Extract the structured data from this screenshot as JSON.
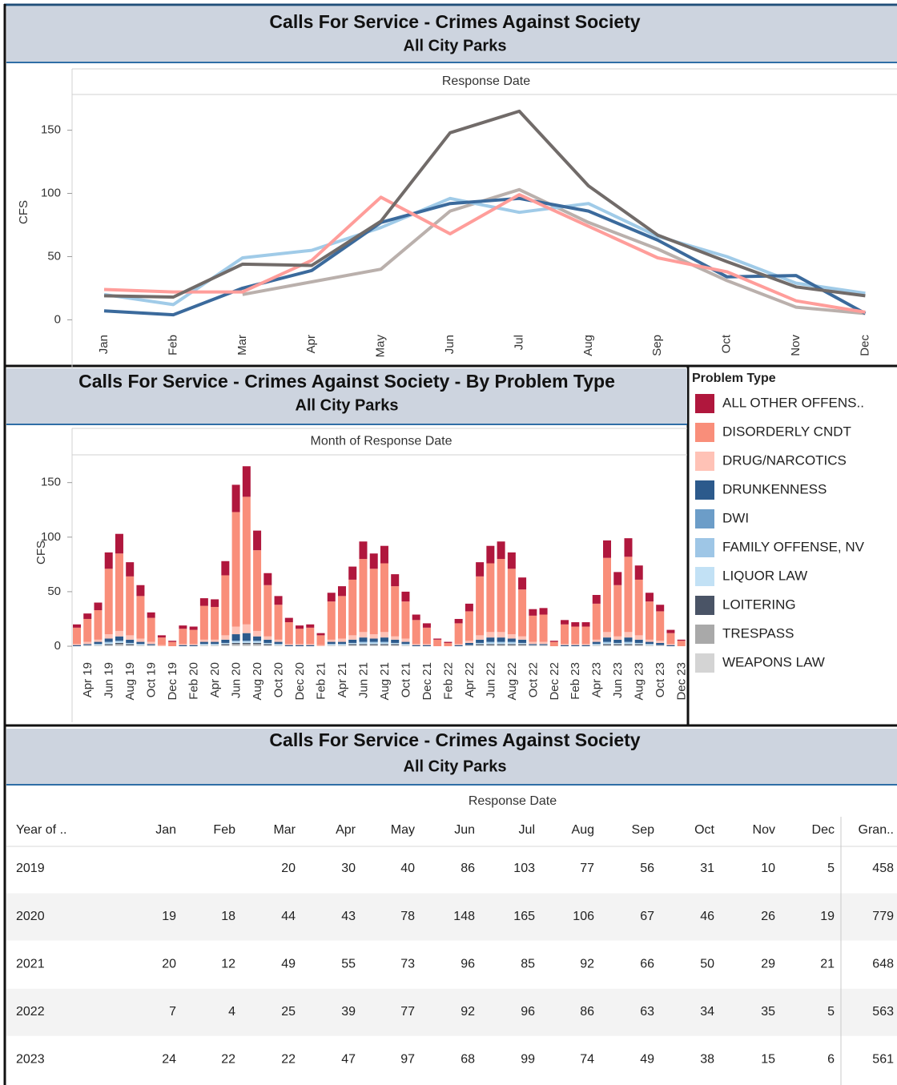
{
  "chart_data": [
    {
      "type": "line",
      "title": "Calls For Service - Crimes Against Society",
      "subtitle": "All City Parks",
      "header": "Response Date",
      "y_label": "CFS",
      "categories": [
        "Jan",
        "Feb",
        "Mar",
        "Apr",
        "May",
        "Jun",
        "Jul",
        "Aug",
        "Sep",
        "Oct",
        "Nov",
        "Dec"
      ],
      "series": [
        {
          "color": "#bab0ac",
          "values": [
            null,
            null,
            20,
            30,
            40,
            86,
            103,
            77,
            56,
            31,
            10,
            5
          ]
        },
        {
          "color": "#a0cbe8",
          "values": [
            20,
            12,
            49,
            55,
            73,
            96,
            85,
            92,
            66,
            50,
            29,
            21
          ]
        },
        {
          "color": "#3b6a9c",
          "values": [
            7,
            4,
            25,
            39,
            77,
            92,
            96,
            86,
            63,
            34,
            35,
            5
          ]
        },
        {
          "color": "#ff9d9a",
          "values": [
            24,
            22,
            22,
            47,
            97,
            68,
            99,
            74,
            49,
            38,
            15,
            6
          ]
        },
        {
          "color": "#716b69",
          "values": [
            19,
            18,
            44,
            43,
            78,
            148,
            165,
            106,
            67,
            46,
            26,
            19
          ]
        }
      ],
      "ylim": [
        -8,
        177
      ],
      "yticks": [
        0,
        50,
        100,
        150
      ]
    },
    {
      "type": "bar",
      "stacked": true,
      "title": "Calls For Service - Crimes Against Society - By Problem Type",
      "subtitle": "All City Parks",
      "header": "Month of Response Date",
      "y_label": "CFS",
      "legend_title": "Problem Type",
      "categories": [
        null,
        "Apr 19",
        null,
        "Jun 19",
        null,
        "Aug 19",
        null,
        "Oct 19",
        null,
        "Dec 19",
        null,
        "Feb 20",
        null,
        "Apr 20",
        null,
        "Jun 20",
        null,
        "Aug 20",
        null,
        "Oct 20",
        null,
        "Dec 20",
        null,
        "Feb 21",
        null,
        "Apr 21",
        null,
        "Jun 21",
        null,
        "Aug 21",
        null,
        "Oct 21",
        null,
        "Dec 21",
        null,
        "Feb 22",
        null,
        "Apr 22",
        null,
        "Jun 22",
        null,
        "Aug 22",
        null,
        "Oct 22",
        null,
        "Dec 22",
        null,
        "Feb 23",
        null,
        "Apr 23",
        null,
        "Jun 23",
        null,
        "Aug 23",
        null,
        "Oct 23",
        null,
        "Dec 23"
      ],
      "series": [
        {
          "name": "ALL OTHER OFFENS..",
          "color": "#b0173d",
          "values": [
            3,
            5,
            7,
            15,
            18,
            13,
            10,
            5,
            2,
            1,
            3,
            3,
            7,
            7,
            13,
            25,
            28,
            18,
            11,
            8,
            4,
            3,
            3,
            2,
            8,
            9,
            12,
            16,
            14,
            16,
            11,
            9,
            5,
            4,
            1,
            1,
            4,
            7,
            13,
            16,
            16,
            15,
            11,
            6,
            6,
            1,
            4,
            4,
            4,
            8,
            16,
            12,
            17,
            13,
            8,
            6,
            3,
            1
          ]
        },
        {
          "name": "DISORDERLY CNDT",
          "color": "#f98e7a",
          "values": [
            15,
            21,
            27,
            60,
            71,
            54,
            39,
            22,
            7,
            4,
            14,
            13,
            31,
            30,
            55,
            105,
            117,
            74,
            47,
            32,
            20,
            14,
            15,
            9,
            35,
            39,
            51,
            67,
            60,
            63,
            46,
            34,
            22,
            15,
            6,
            3,
            19,
            27,
            54,
            63,
            67,
            60,
            43,
            24,
            25,
            4,
            18,
            16,
            16,
            33,
            68,
            47,
            69,
            51,
            35,
            27,
            10,
            5
          ]
        },
        {
          "name": "DRUG/NARCOTICS",
          "color": "#ffc2b6",
          "values": [
            1,
            2,
            2,
            4,
            5,
            4,
            3,
            2,
            1,
            0,
            1,
            1,
            2,
            2,
            4,
            7,
            8,
            5,
            3,
            2,
            1,
            1,
            1,
            1,
            2,
            3,
            4,
            5,
            4,
            5,
            3,
            3,
            1,
            1,
            0,
            0,
            1,
            2,
            4,
            5,
            5,
            4,
            3,
            2,
            2,
            0,
            1,
            1,
            1,
            2,
            5,
            3,
            5,
            4,
            2,
            2,
            1,
            0
          ]
        },
        {
          "name": "DRUNKENNESS",
          "color": "#2c5a8c",
          "values": [
            1,
            1,
            2,
            3,
            4,
            3,
            2,
            1,
            0,
            0,
            1,
            1,
            2,
            2,
            3,
            6,
            7,
            4,
            3,
            2,
            1,
            1,
            1,
            0,
            2,
            2,
            3,
            4,
            3,
            4,
            3,
            2,
            1,
            1,
            0,
            0,
            1,
            2,
            3,
            4,
            4,
            3,
            3,
            1,
            1,
            0,
            1,
            1,
            1,
            2,
            4,
            3,
            4,
            3,
            2,
            2,
            1,
            0
          ]
        },
        {
          "name": "DWI",
          "color": "#6c9dc8",
          "values": [
            0,
            0,
            0,
            0,
            0,
            0,
            0,
            0,
            0,
            0,
            0,
            0,
            0,
            0,
            0,
            0,
            0,
            0,
            0,
            0,
            0,
            0,
            0,
            0,
            0,
            0,
            0,
            0,
            0,
            0,
            0,
            0,
            0,
            0,
            0,
            0,
            0,
            0,
            0,
            0,
            0,
            0,
            0,
            0,
            0,
            0,
            0,
            0,
            0,
            0,
            0,
            0,
            0,
            0,
            0,
            0,
            0,
            0
          ]
        },
        {
          "name": "FAMILY OFFENSE, NV",
          "color": "#9ec6e6",
          "values": [
            0,
            0,
            0,
            1,
            1,
            0,
            0,
            0,
            0,
            0,
            0,
            0,
            0,
            0,
            0,
            1,
            1,
            1,
            0,
            0,
            0,
            0,
            0,
            0,
            0,
            0,
            0,
            1,
            1,
            1,
            0,
            0,
            0,
            0,
            0,
            0,
            0,
            0,
            0,
            1,
            1,
            1,
            0,
            0,
            0,
            0,
            0,
            0,
            0,
            0,
            1,
            0,
            1,
            0,
            0,
            0,
            0,
            0
          ]
        },
        {
          "name": "LIQUOR LAW",
          "color": "#c2e1f5",
          "values": [
            0,
            0,
            1,
            1,
            1,
            1,
            1,
            0,
            0,
            0,
            0,
            0,
            1,
            1,
            1,
            1,
            1,
            1,
            1,
            1,
            0,
            0,
            0,
            0,
            1,
            1,
            1,
            1,
            1,
            1,
            1,
            1,
            0,
            0,
            0,
            0,
            0,
            0,
            1,
            1,
            1,
            1,
            1,
            0,
            0,
            0,
            0,
            0,
            0,
            1,
            1,
            1,
            1,
            1,
            1,
            0,
            0,
            0
          ]
        },
        {
          "name": "LOITERING",
          "color": "#4a5466",
          "values": [
            0,
            0,
            0,
            1,
            1,
            1,
            0,
            0,
            0,
            0,
            0,
            0,
            0,
            0,
            1,
            1,
            1,
            1,
            1,
            0,
            0,
            0,
            0,
            0,
            0,
            0,
            1,
            1,
            1,
            1,
            1,
            0,
            0,
            0,
            0,
            0,
            0,
            0,
            1,
            1,
            1,
            1,
            1,
            0,
            0,
            0,
            0,
            0,
            0,
            0,
            1,
            1,
            1,
            1,
            0,
            0,
            0,
            0
          ]
        },
        {
          "name": "TRESPASS",
          "color": "#a9a9a9",
          "values": [
            0,
            0,
            0,
            0,
            1,
            0,
            0,
            0,
            0,
            0,
            0,
            0,
            0,
            0,
            0,
            1,
            1,
            1,
            0,
            0,
            0,
            0,
            0,
            0,
            0,
            0,
            0,
            0,
            0,
            0,
            0,
            0,
            0,
            0,
            0,
            0,
            0,
            0,
            0,
            0,
            0,
            0,
            0,
            0,
            0,
            0,
            0,
            0,
            0,
            0,
            0,
            0,
            0,
            0,
            0,
            0,
            0,
            0
          ]
        },
        {
          "name": "WEAPONS LAW",
          "color": "#d4d4d4",
          "values": [
            0,
            1,
            1,
            1,
            1,
            1,
            1,
            1,
            0,
            0,
            0,
            0,
            1,
            1,
            1,
            1,
            1,
            1,
            1,
            1,
            0,
            0,
            0,
            0,
            1,
            1,
            1,
            1,
            1,
            1,
            1,
            1,
            0,
            0,
            0,
            0,
            0,
            1,
            1,
            1,
            1,
            1,
            1,
            1,
            1,
            0,
            0,
            0,
            0,
            1,
            1,
            1,
            1,
            1,
            1,
            1,
            0,
            0
          ]
        }
      ],
      "ylim": [
        -11,
        174
      ],
      "yticks": [
        0,
        50,
        100,
        150
      ]
    }
  ],
  "table": {
    "title": "Calls For Service - Crimes Against Society",
    "subtitle": "All City Parks",
    "column_group": "Response Date",
    "columns": [
      "Year of ..",
      "Jan",
      "Feb",
      "Mar",
      "Apr",
      "May",
      "Jun",
      "Jul",
      "Aug",
      "Sep",
      "Oct",
      "Nov",
      "Dec",
      "Gran.."
    ],
    "rows": [
      [
        "2019",
        null,
        null,
        20,
        30,
        40,
        86,
        103,
        77,
        56,
        31,
        10,
        5,
        458
      ],
      [
        "2020",
        19,
        18,
        44,
        43,
        78,
        148,
        165,
        106,
        67,
        46,
        26,
        19,
        779
      ],
      [
        "2021",
        20,
        12,
        49,
        55,
        73,
        96,
        85,
        92,
        66,
        50,
        29,
        21,
        648
      ],
      [
        "2022",
        7,
        4,
        25,
        39,
        77,
        92,
        96,
        86,
        63,
        34,
        35,
        5,
        563
      ],
      [
        "2023",
        24,
        22,
        22,
        47,
        97,
        68,
        99,
        74,
        49,
        38,
        15,
        6,
        561
      ]
    ]
  }
}
